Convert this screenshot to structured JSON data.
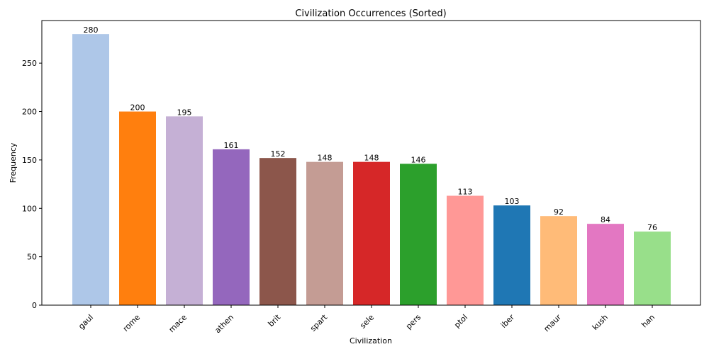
{
  "chart_data": {
    "type": "bar",
    "title": "Civilization Occurrences (Sorted)",
    "xlabel": "Civilization",
    "ylabel": "Frequency",
    "ylim": [
      0,
      294
    ],
    "yticks": [
      0,
      50,
      100,
      150,
      200,
      250
    ],
    "categories": [
      "gaul",
      "rome",
      "mace",
      "athen",
      "brit",
      "spart",
      "sele",
      "pers",
      "ptol",
      "iber",
      "maur",
      "kush",
      "han"
    ],
    "values": [
      280,
      200,
      195,
      161,
      152,
      148,
      148,
      146,
      113,
      103,
      92,
      84,
      76
    ],
    "colors": [
      "#aec7e8",
      "#ff7f0e",
      "#c5b0d5",
      "#9467bd",
      "#8c564b",
      "#c49c94",
      "#d62728",
      "#2ca02c",
      "#ff9896",
      "#1f77b4",
      "#ffbb78",
      "#e377c2",
      "#98df8a"
    ],
    "grid": false,
    "legend": "none"
  }
}
